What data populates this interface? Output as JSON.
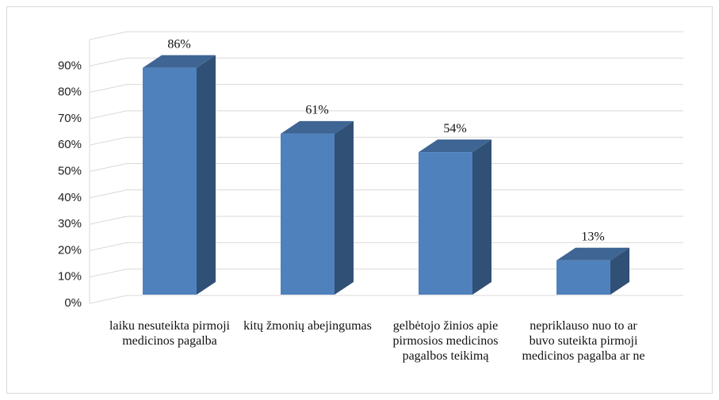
{
  "chart_data": {
    "type": "bar3d",
    "categories": [
      "laiku nesuteikta pirmoji medicinos pagalba",
      "kitų žmonių abejingumas",
      "gelbėtojo žinios apie pirmosios medicinos pagalbos teikimą",
      "nepriklauso nuo to ar buvo suteikta pirmoji medicinos pagalba ar ne"
    ],
    "values": [
      86,
      61,
      54,
      13
    ],
    "value_labels": [
      "86%",
      "61%",
      "54%",
      "13%"
    ],
    "color": "#4f81bd",
    "ylim": [
      0,
      100
    ],
    "yticks": [
      {
        "value": 0,
        "label": "0%"
      },
      {
        "value": 10,
        "label": "10%"
      },
      {
        "value": 20,
        "label": "20%"
      },
      {
        "value": 30,
        "label": "30%"
      },
      {
        "value": 40,
        "label": "40%"
      },
      {
        "value": 50,
        "label": "50%"
      },
      {
        "value": 60,
        "label": "60%"
      },
      {
        "value": 70,
        "label": "70%"
      },
      {
        "value": 80,
        "label": "80%"
      },
      {
        "value": 90,
        "label": "90%"
      }
    ],
    "grid": true
  }
}
